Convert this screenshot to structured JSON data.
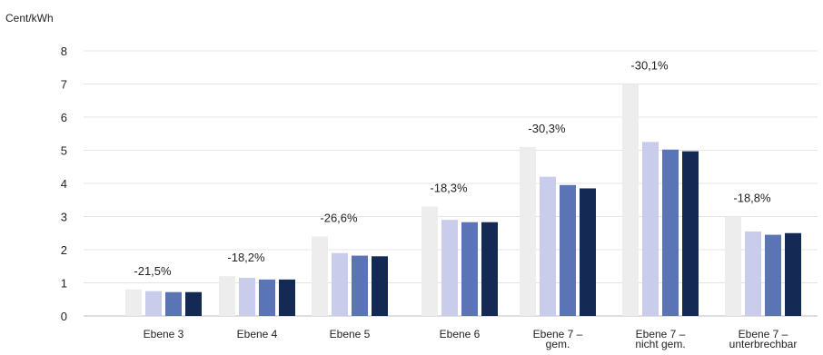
{
  "chart_data": {
    "type": "bar",
    "title": "",
    "ylabel": "Cent/kWh",
    "xlabel": "",
    "ylim": [
      0,
      8
    ],
    "yticks": [
      0,
      1,
      2,
      3,
      4,
      5,
      6,
      7,
      8
    ],
    "grid": true,
    "categories": [
      [
        "Ebene 3"
      ],
      [
        "Ebene 4"
      ],
      [
        "Ebene 5"
      ],
      [
        "Ebene 6"
      ],
      [
        "Ebene 7 –",
        "gem."
      ],
      [
        "Ebene 7 –",
        "nicht gem."
      ],
      [
        "Ebene 7 –",
        "unterbrechbar"
      ]
    ],
    "series": [
      {
        "color": "#ededed",
        "values": [
          0.8,
          1.2,
          2.4,
          3.3,
          5.1,
          7.0,
          3.0
        ]
      },
      {
        "color": "#c9cdeb",
        "values": [
          0.75,
          1.15,
          1.9,
          2.9,
          4.2,
          5.25,
          2.55
        ]
      },
      {
        "color": "#5b74b6",
        "values": [
          0.72,
          1.1,
          1.82,
          2.83,
          3.95,
          5.02,
          2.45
        ]
      },
      {
        "color": "#142a55",
        "values": [
          0.72,
          1.1,
          1.8,
          2.83,
          3.85,
          4.97,
          2.5
        ]
      }
    ],
    "annotations": [
      "-21,5%",
      "-18,2%",
      "-26,6%",
      "-18,3%",
      "-30,3%",
      "-30,1%",
      "-18,8%"
    ]
  }
}
